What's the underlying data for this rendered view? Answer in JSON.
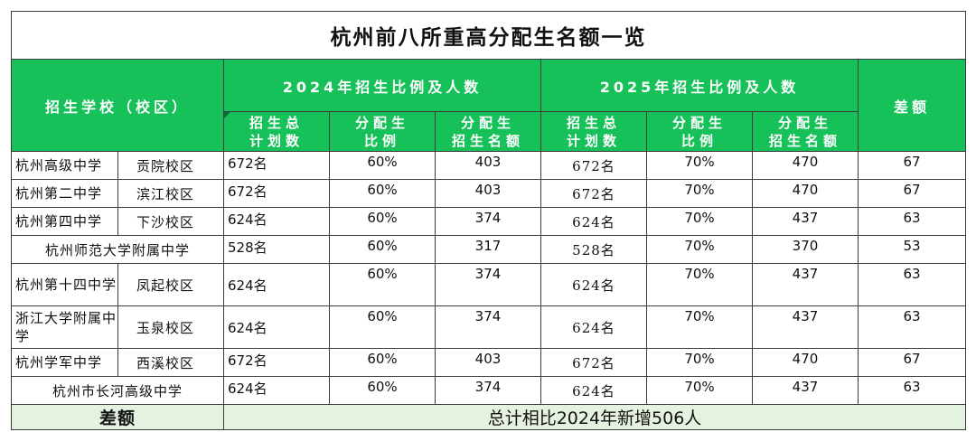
{
  "title": "杭州前八所重高分配生名额一览",
  "headers": {
    "school": "招生学校（校区）",
    "y2024": "2024年招生比例及人数",
    "y2025": "2025年招生比例及人数",
    "diff": "差额",
    "sub": [
      {
        "l1": "招生总",
        "l2": "计划数"
      },
      {
        "l1": "分配生",
        "l2": "比例"
      },
      {
        "l1": "分配生",
        "l2": "招生名额"
      },
      {
        "l1": "招生总",
        "l2": "计划数"
      },
      {
        "l1": "分配生",
        "l2": "比例"
      },
      {
        "l1": "分配生",
        "l2": "招生名额"
      }
    ]
  },
  "rows": [
    {
      "school": "杭州高级中学",
      "campus": "贡院校区",
      "plan24": "672名",
      "ratio24": "60%",
      "quota24": "403",
      "plan25": "672名",
      "ratio25": "70%",
      "quota25": "470",
      "diff": "67"
    },
    {
      "school": "杭州第二中学",
      "campus": "滨江校区",
      "plan24": "672名",
      "ratio24": "60%",
      "quota24": "403",
      "plan25": "672名",
      "ratio25": "70%",
      "quota25": "470",
      "diff": "67"
    },
    {
      "school": "杭州第四中学",
      "campus": "下沙校区",
      "plan24": "624名",
      "ratio24": "60%",
      "quota24": "374",
      "plan25": "624名",
      "ratio25": "70%",
      "quota25": "437",
      "diff": "63"
    },
    {
      "school": "杭州师范大学附属中学",
      "campus": "",
      "plan24": "528名",
      "ratio24": "60%",
      "quota24": "317",
      "plan25": "528名",
      "ratio25": "70%",
      "quota25": "370",
      "diff": "53"
    },
    {
      "school": "杭州第十四中学",
      "campus": "凤起校区",
      "plan24": "624名",
      "ratio24": "60%",
      "quota24": "374",
      "plan25": "624名",
      "ratio25": "70%",
      "quota25": "437",
      "diff": "63"
    },
    {
      "school": "浙江大学附属中学",
      "campus": "玉泉校区",
      "plan24": "624名",
      "ratio24": "60%",
      "quota24": "374",
      "plan25": "624名",
      "ratio25": "70%",
      "quota25": "437",
      "diff": "63"
    },
    {
      "school": "杭州学军中学",
      "campus": "西溪校区",
      "plan24": "672名",
      "ratio24": "60%",
      "quota24": "403",
      "plan25": "672名",
      "ratio25": "70%",
      "quota25": "470",
      "diff": "67"
    },
    {
      "school": "杭州市长河高级中学",
      "campus": "",
      "plan24": "624名",
      "ratio24": "60%",
      "quota24": "374",
      "plan25": "624名",
      "ratio25": "70%",
      "quota25": "437",
      "diff": "63"
    }
  ],
  "footer": {
    "label": "差额",
    "total": "总计相比2024年新增506人"
  }
}
